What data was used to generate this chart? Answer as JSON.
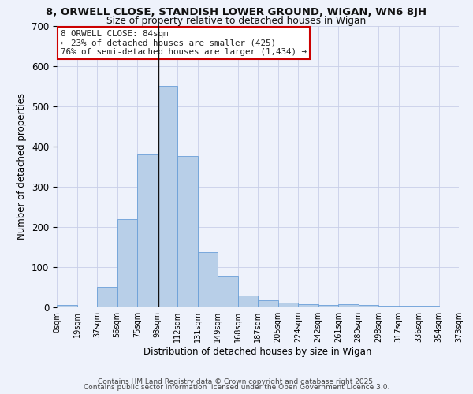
{
  "title1": "8, ORWELL CLOSE, STANDISH LOWER GROUND, WIGAN, WN6 8JH",
  "title2": "Size of property relative to detached houses in Wigan",
  "xlabel": "Distribution of detached houses by size in Wigan",
  "ylabel": "Number of detached properties",
  "bin_labels": [
    "0sqm",
    "19sqm",
    "37sqm",
    "56sqm",
    "75sqm",
    "93sqm",
    "112sqm",
    "131sqm",
    "149sqm",
    "168sqm",
    "187sqm",
    "205sqm",
    "224sqm",
    "242sqm",
    "261sqm",
    "280sqm",
    "298sqm",
    "317sqm",
    "336sqm",
    "354sqm",
    "373sqm"
  ],
  "bar_heights": [
    5,
    0,
    50,
    220,
    380,
    550,
    375,
    138,
    78,
    30,
    18,
    12,
    8,
    5,
    8,
    5,
    3,
    3,
    3,
    2
  ],
  "bar_color": "#b8cfe8",
  "bar_edge_color": "#6a9fd8",
  "vline_x": 4.55,
  "vline_color": "#111111",
  "annotation_text": "8 ORWELL CLOSE: 84sqm\n← 23% of detached houses are smaller (425)\n76% of semi-detached houses are larger (1,434) →",
  "annotation_box_color": "#ffffff",
  "annotation_edge_color": "#cc0000",
  "annotation_text_color": "#222222",
  "background_color": "#eef2fb",
  "grid_color": "#c8cfe8",
  "ylim": [
    0,
    700
  ],
  "yticks": [
    0,
    100,
    200,
    300,
    400,
    500,
    600,
    700
  ],
  "footer1": "Contains HM Land Registry data © Crown copyright and database right 2025.",
  "footer2": "Contains public sector information licensed under the Open Government Licence 3.0."
}
